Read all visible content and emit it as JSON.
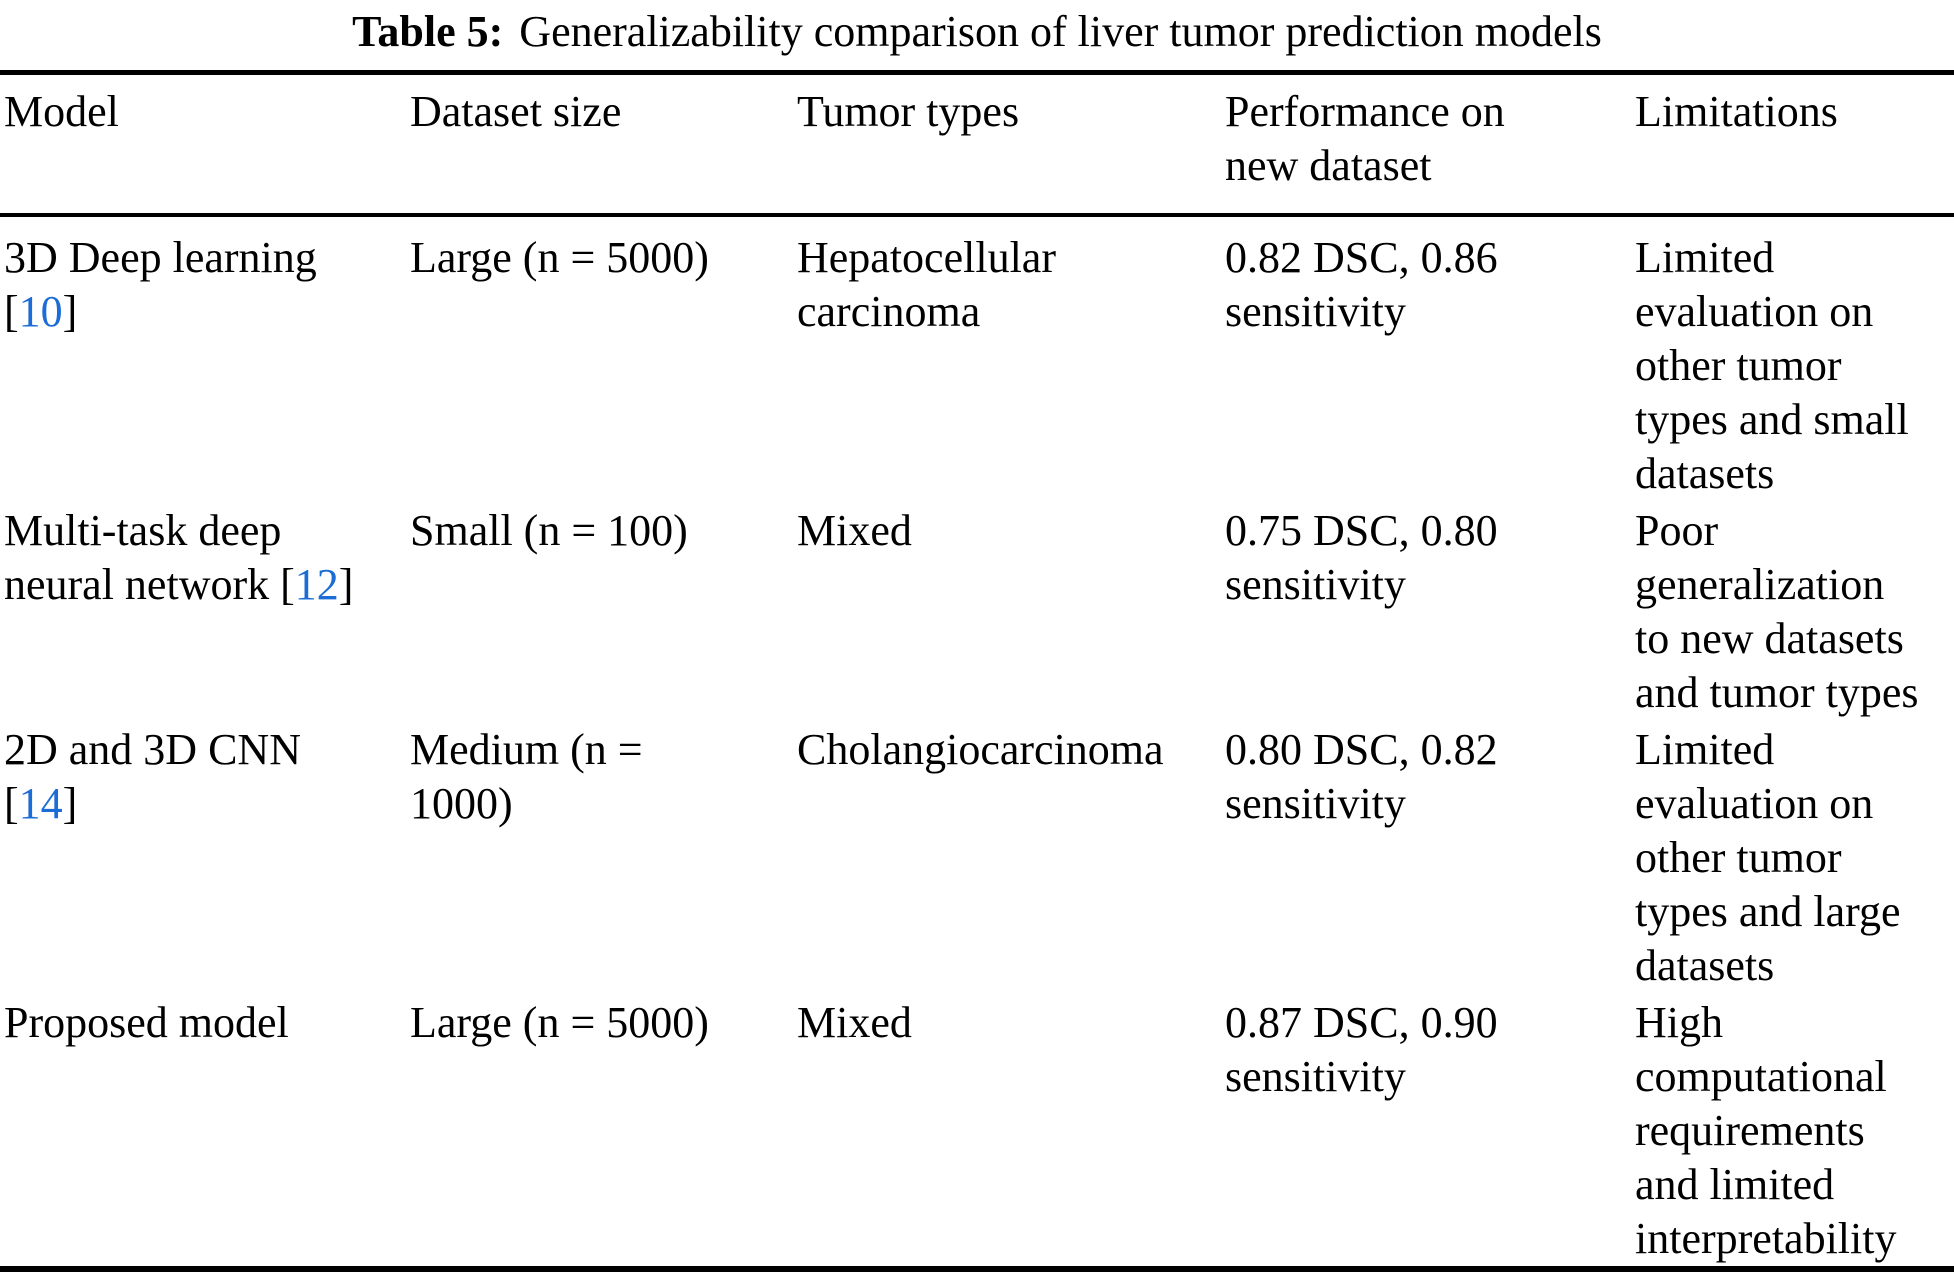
{
  "colors": {
    "text": "#000000",
    "background": "#ffffff",
    "citation_link": "#1b6cd6"
  },
  "caption": {
    "label": "Table 5:",
    "text": "Generalizability comparison of liver tumor prediction models"
  },
  "table": {
    "headers": [
      "Model",
      "Dataset size",
      "Tumor types",
      "Performance on\nnew dataset",
      "Limitations"
    ],
    "rows": [
      {
        "model_pre": "3D Deep learning\n[",
        "model_cite": "10",
        "model_post": "]",
        "dataset_size": "Large (n = 5000)",
        "tumor_types": "Hepatocellular\ncarcinoma",
        "performance": "0.82 DSC, 0.86\nsensitivity",
        "limitations": "Limited\nevaluation on\nother tumor\ntypes and small\ndatasets"
      },
      {
        "model_pre": "Multi-task deep\nneural network [",
        "model_cite": "12",
        "model_post": "]",
        "dataset_size": "Small (n = 100)",
        "tumor_types": "Mixed",
        "performance": "0.75 DSC, 0.80\nsensitivity",
        "limitations": "Poor\ngeneralization\nto new datasets\nand tumor types"
      },
      {
        "model_pre": "2D and 3D CNN\n[",
        "model_cite": "14",
        "model_post": "]",
        "dataset_size": "Medium (n =\n1000)",
        "tumor_types": "Cholangiocarcinoma",
        "performance": "0.80 DSC, 0.82\nsensitivity",
        "limitations": "Limited\nevaluation on\nother tumor\ntypes and large\ndatasets"
      },
      {
        "model_pre": "Proposed model",
        "model_cite": "",
        "model_post": "",
        "dataset_size": "Large (n = 5000)",
        "tumor_types": "Mixed",
        "performance": "0.87 DSC, 0.90\nsensitivity",
        "limitations": "High\ncomputational\nrequirements\nand limited\ninterpretability"
      }
    ]
  }
}
